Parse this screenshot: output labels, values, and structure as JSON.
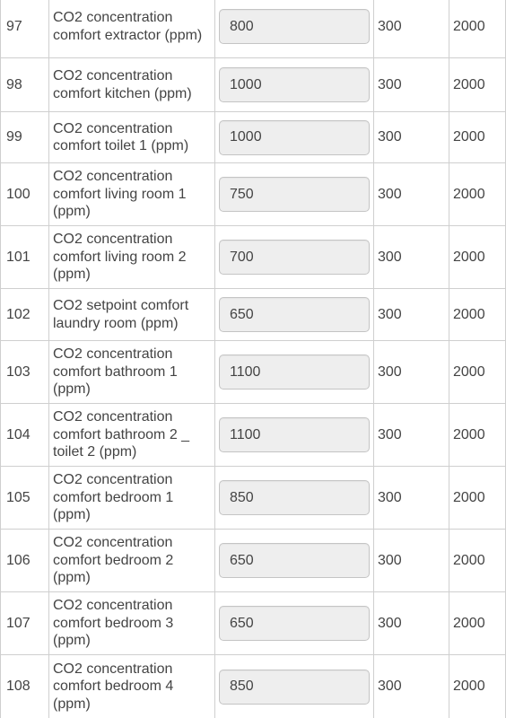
{
  "rows": [
    {
      "id": "97",
      "name": "CO2 concentration comfort extractor (ppm)",
      "value": "800",
      "min": "300",
      "max": "2000"
    },
    {
      "id": "98",
      "name": "CO2 concentration comfort kitchen (ppm)",
      "value": "1000",
      "min": "300",
      "max": "2000"
    },
    {
      "id": "99",
      "name": "CO2 concentration comfort toilet 1 (ppm)",
      "value": "1000",
      "min": "300",
      "max": "2000"
    },
    {
      "id": "100",
      "name": "CO2 concentration comfort living room 1 (ppm)",
      "value": "750",
      "min": "300",
      "max": "2000"
    },
    {
      "id": "101",
      "name": "CO2 concentration comfort living room 2 (ppm)",
      "value": "700",
      "min": "300",
      "max": "2000"
    },
    {
      "id": "102",
      "name": "CO2 setpoint comfort laundry room (ppm)",
      "value": "650",
      "min": "300",
      "max": "2000"
    },
    {
      "id": "103",
      "name": "CO2 concentration comfort bathroom 1 (ppm)",
      "value": "1100",
      "min": "300",
      "max": "2000"
    },
    {
      "id": "104",
      "name": "CO2 concentration comfort bathroom 2 _ toilet 2 (ppm)",
      "value": "1100",
      "min": "300",
      "max": "2000"
    },
    {
      "id": "105",
      "name": "CO2 concentration comfort bedroom 1 (ppm)",
      "value": "850",
      "min": "300",
      "max": "2000"
    },
    {
      "id": "106",
      "name": "CO2 concentration comfort bedroom 2 (ppm)",
      "value": "650",
      "min": "300",
      "max": "2000"
    },
    {
      "id": "107",
      "name": "CO2 concentration comfort bedroom 3 (ppm)",
      "value": "650",
      "min": "300",
      "max": "2000"
    },
    {
      "id": "108",
      "name": "CO2 concentration comfort bedroom 4 (ppm)",
      "value": "850",
      "min": "300",
      "max": "2000"
    }
  ]
}
